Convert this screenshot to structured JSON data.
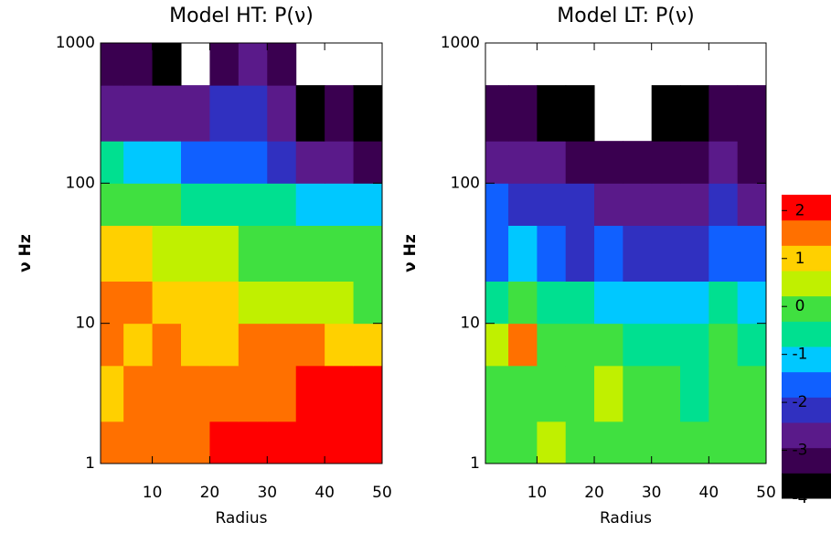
{
  "chart_data": [
    {
      "type": "heatmap",
      "title": "Model HT: P(ν)",
      "xlabel": "Radius",
      "ylabel": "ν Hz",
      "xlim": [
        1,
        50
      ],
      "ylim": [
        1,
        1000
      ],
      "log_y": true,
      "xticks": [
        10,
        20,
        30,
        40,
        50
      ],
      "yticks": [
        1,
        10,
        100,
        1000
      ],
      "x_edges": [
        1,
        5,
        10,
        15,
        20,
        25,
        30,
        35,
        40,
        45,
        50
      ],
      "y_edges": [
        1,
        2,
        5,
        10,
        20,
        50,
        100,
        200,
        500,
        1000
      ],
      "z": [
        [
          1.5,
          1.8,
          1.6,
          1.8,
          2,
          2,
          2,
          2,
          2,
          2
        ],
        [
          1.2,
          1.3,
          1.5,
          1.3,
          1.8,
          1.8,
          1.8,
          1.9,
          1.9,
          2
        ],
        [
          1.3,
          1.2,
          1.5,
          1.0,
          1.2,
          1.4,
          1.3,
          1.3,
          1.0,
          1.1
        ],
        [
          1.3,
          1.4,
          1.2,
          1.0,
          0.8,
          0.6,
          0.4,
          0.3,
          0.3,
          0.2
        ],
        [
          0.8,
          1.0,
          0.6,
          0.5,
          0.3,
          0.2,
          0,
          -0.1,
          0,
          0
        ],
        [
          0,
          -0.2,
          -0.3,
          -0.5,
          -0.6,
          -0.7,
          -0.8,
          -0.9,
          -1,
          -1.2
        ],
        [
          -0.8,
          -1,
          -1.2,
          -1.5,
          -1.5,
          -1.7,
          -2,
          -2.5,
          -2.7,
          -3
        ],
        [
          -2.5,
          -2.5,
          -2.7,
          -2.5,
          -2.2,
          -2,
          -2.5,
          -3.5,
          -3,
          -3.5
        ],
        [
          -3,
          -3,
          -3.5,
          null,
          -3,
          -2.8,
          -3,
          null,
          null,
          null
        ]
      ]
    },
    {
      "type": "heatmap",
      "title": "Model LT: P(ν)",
      "xlabel": "Radius",
      "ylabel": "ν Hz",
      "xlim": [
        1,
        50
      ],
      "ylim": [
        1,
        1000
      ],
      "log_y": true,
      "xticks": [
        10,
        20,
        30,
        40,
        50
      ],
      "yticks": [
        1,
        10,
        100,
        1000
      ],
      "x_edges": [
        1,
        5,
        10,
        15,
        20,
        25,
        30,
        35,
        40,
        45,
        50
      ],
      "y_edges": [
        1,
        2,
        5,
        10,
        20,
        50,
        100,
        200,
        500,
        1000
      ],
      "z": [
        [
          -0.3,
          0.2,
          0.3,
          0,
          0,
          0.2,
          0,
          0.1,
          0,
          0
        ],
        [
          0,
          0,
          -0.3,
          0,
          0.3,
          0,
          -0.2,
          -0.5,
          0,
          -0.2
        ],
        [
          0.3,
          1.5,
          0,
          -0.2,
          -0.3,
          -0.5,
          -0.5,
          -0.6,
          -0.3,
          -0.5
        ],
        [
          -0.5,
          -0.3,
          -0.7,
          -0.8,
          -1,
          -1,
          -1,
          -1.2,
          -0.8,
          -1
        ],
        [
          -1.5,
          -1.2,
          -1.5,
          -2,
          -1.8,
          -2,
          -2,
          -2,
          -1.5,
          -1.8
        ],
        [
          -1.8,
          -2,
          -2,
          -2.2,
          -2.5,
          -2.5,
          -2.5,
          -2.5,
          -2.2,
          -2.5
        ],
        [
          -2.5,
          -2.5,
          -2.8,
          -3,
          -3,
          -3,
          -3.2,
          -3.3,
          -2.8,
          -3
        ],
        [
          -3.2,
          -3.3,
          -3.5,
          -3.6,
          null,
          null,
          -3.7,
          -3.6,
          -3.2,
          -3.4
        ],
        [
          null,
          null,
          null,
          null,
          null,
          null,
          null,
          null,
          null,
          null
        ]
      ]
    }
  ],
  "colorbar": {
    "zlim": [
      -4,
      2.33
    ],
    "zticks": [
      -4,
      -3,
      -2,
      -1,
      0,
      1,
      2
    ],
    "colors": [
      "#000000",
      "#3a0050",
      "#5a1a8a",
      "#3030c0",
      "#1060ff",
      "#00c8ff",
      "#00e090",
      "#40e040",
      "#c0f000",
      "#ffd000",
      "#ff7000",
      "#ff0000"
    ]
  }
}
